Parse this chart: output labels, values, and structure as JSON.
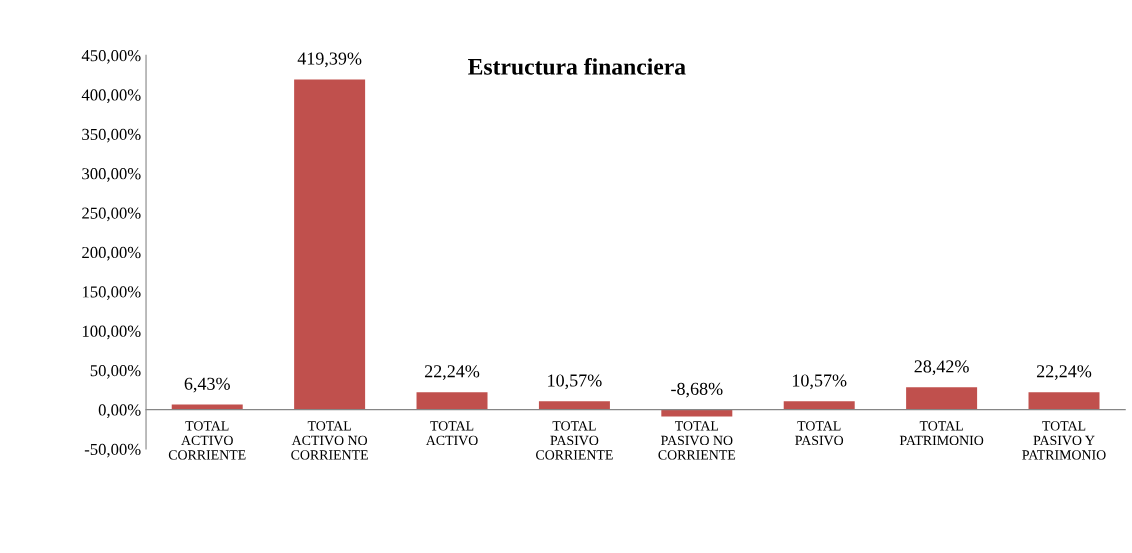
{
  "chart_data": {
    "type": "bar",
    "title": "Estructura financiera",
    "categories": [
      "TOTAL\nACTIVO\nCORRIENTE",
      "TOTAL\nACTIVO NO\nCORRIENTE",
      "TOTAL\nACTIVO",
      "TOTAL\nPASIVO\nCORRIENTE",
      "TOTAL\nPASIVO NO\nCORRIENTE",
      "TOTAL\nPASIVO",
      "TOTAL\nPATRIMONIO",
      "TOTAL\nPASIVO Y\nPATRIMONIO"
    ],
    "values": [
      6.43,
      419.39,
      22.24,
      10.57,
      -8.68,
      10.57,
      28.42,
      22.24
    ],
    "value_labels": [
      "6,43%",
      "419,39%",
      "22,24%",
      "10,57%",
      "-8,68%",
      "10,57%",
      "28,42%",
      "22,24%"
    ],
    "color": "#c0504d",
    "ylim": [
      -50,
      450
    ],
    "yticks": [
      {
        "value": -50,
        "label": "-50,00%"
      },
      {
        "value": 0,
        "label": "0,00%"
      },
      {
        "value": 50,
        "label": "50,00%"
      },
      {
        "value": 100,
        "label": "100,00%"
      },
      {
        "value": 150,
        "label": "150,00%"
      },
      {
        "value": 200,
        "label": "200,00%"
      },
      {
        "value": 250,
        "label": "250,00%"
      },
      {
        "value": 300,
        "label": "300,00%"
      },
      {
        "value": 350,
        "label": "350,00%"
      },
      {
        "value": 400,
        "label": "400,00%"
      },
      {
        "value": 450,
        "label": "450,00%"
      }
    ],
    "grid": false
  }
}
